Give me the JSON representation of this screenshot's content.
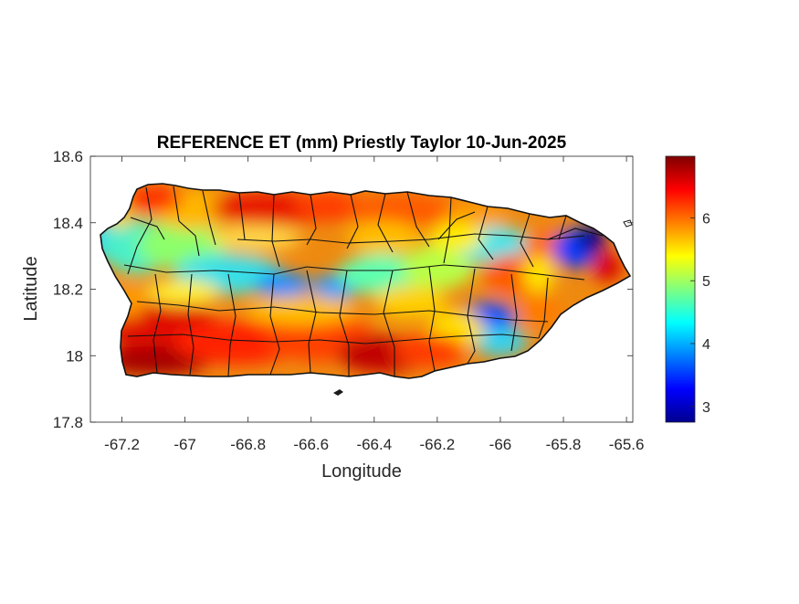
{
  "figure": {
    "title": "REFERENCE ET (mm) Priestly Taylor 10-Jun-2025",
    "xlabel": "Longitude",
    "ylabel": "Latitude"
  },
  "map": {
    "region_shown": "Puerto Rico (municipality boundaries)",
    "variable_colormap": "jet",
    "xlim": [
      -67.3,
      -65.58
    ],
    "ylim": [
      17.8,
      18.6
    ],
    "x_ticks": [
      "-67.2",
      "-67",
      "-66.8",
      "-66.6",
      "-66.4",
      "-66.2",
      "-66",
      "-65.8",
      "-65.6"
    ],
    "y_ticks": [
      "18.6",
      "18.4",
      "18.2",
      "18",
      "17.8"
    ],
    "x_tick_values": [
      -67.2,
      -67,
      -66.8,
      -66.6,
      -66.4,
      -66.2,
      -66,
      -65.8,
      -65.6
    ],
    "y_tick_values": [
      18.6,
      18.4,
      18.2,
      18,
      17.8
    ]
  },
  "colorbar": {
    "range": [
      2.75,
      6.98
    ],
    "ticks": [
      "3",
      "4",
      "5",
      "6"
    ],
    "tick_values": [
      3,
      4,
      5,
      6
    ],
    "colors": [
      "#00008f",
      "#0000ff",
      "#00ffff",
      "#ffff00",
      "#ff0000",
      "#800000"
    ]
  },
  "colors": {
    "low": "#00008f",
    "high": "#800000",
    "boundary": "#000000"
  }
}
